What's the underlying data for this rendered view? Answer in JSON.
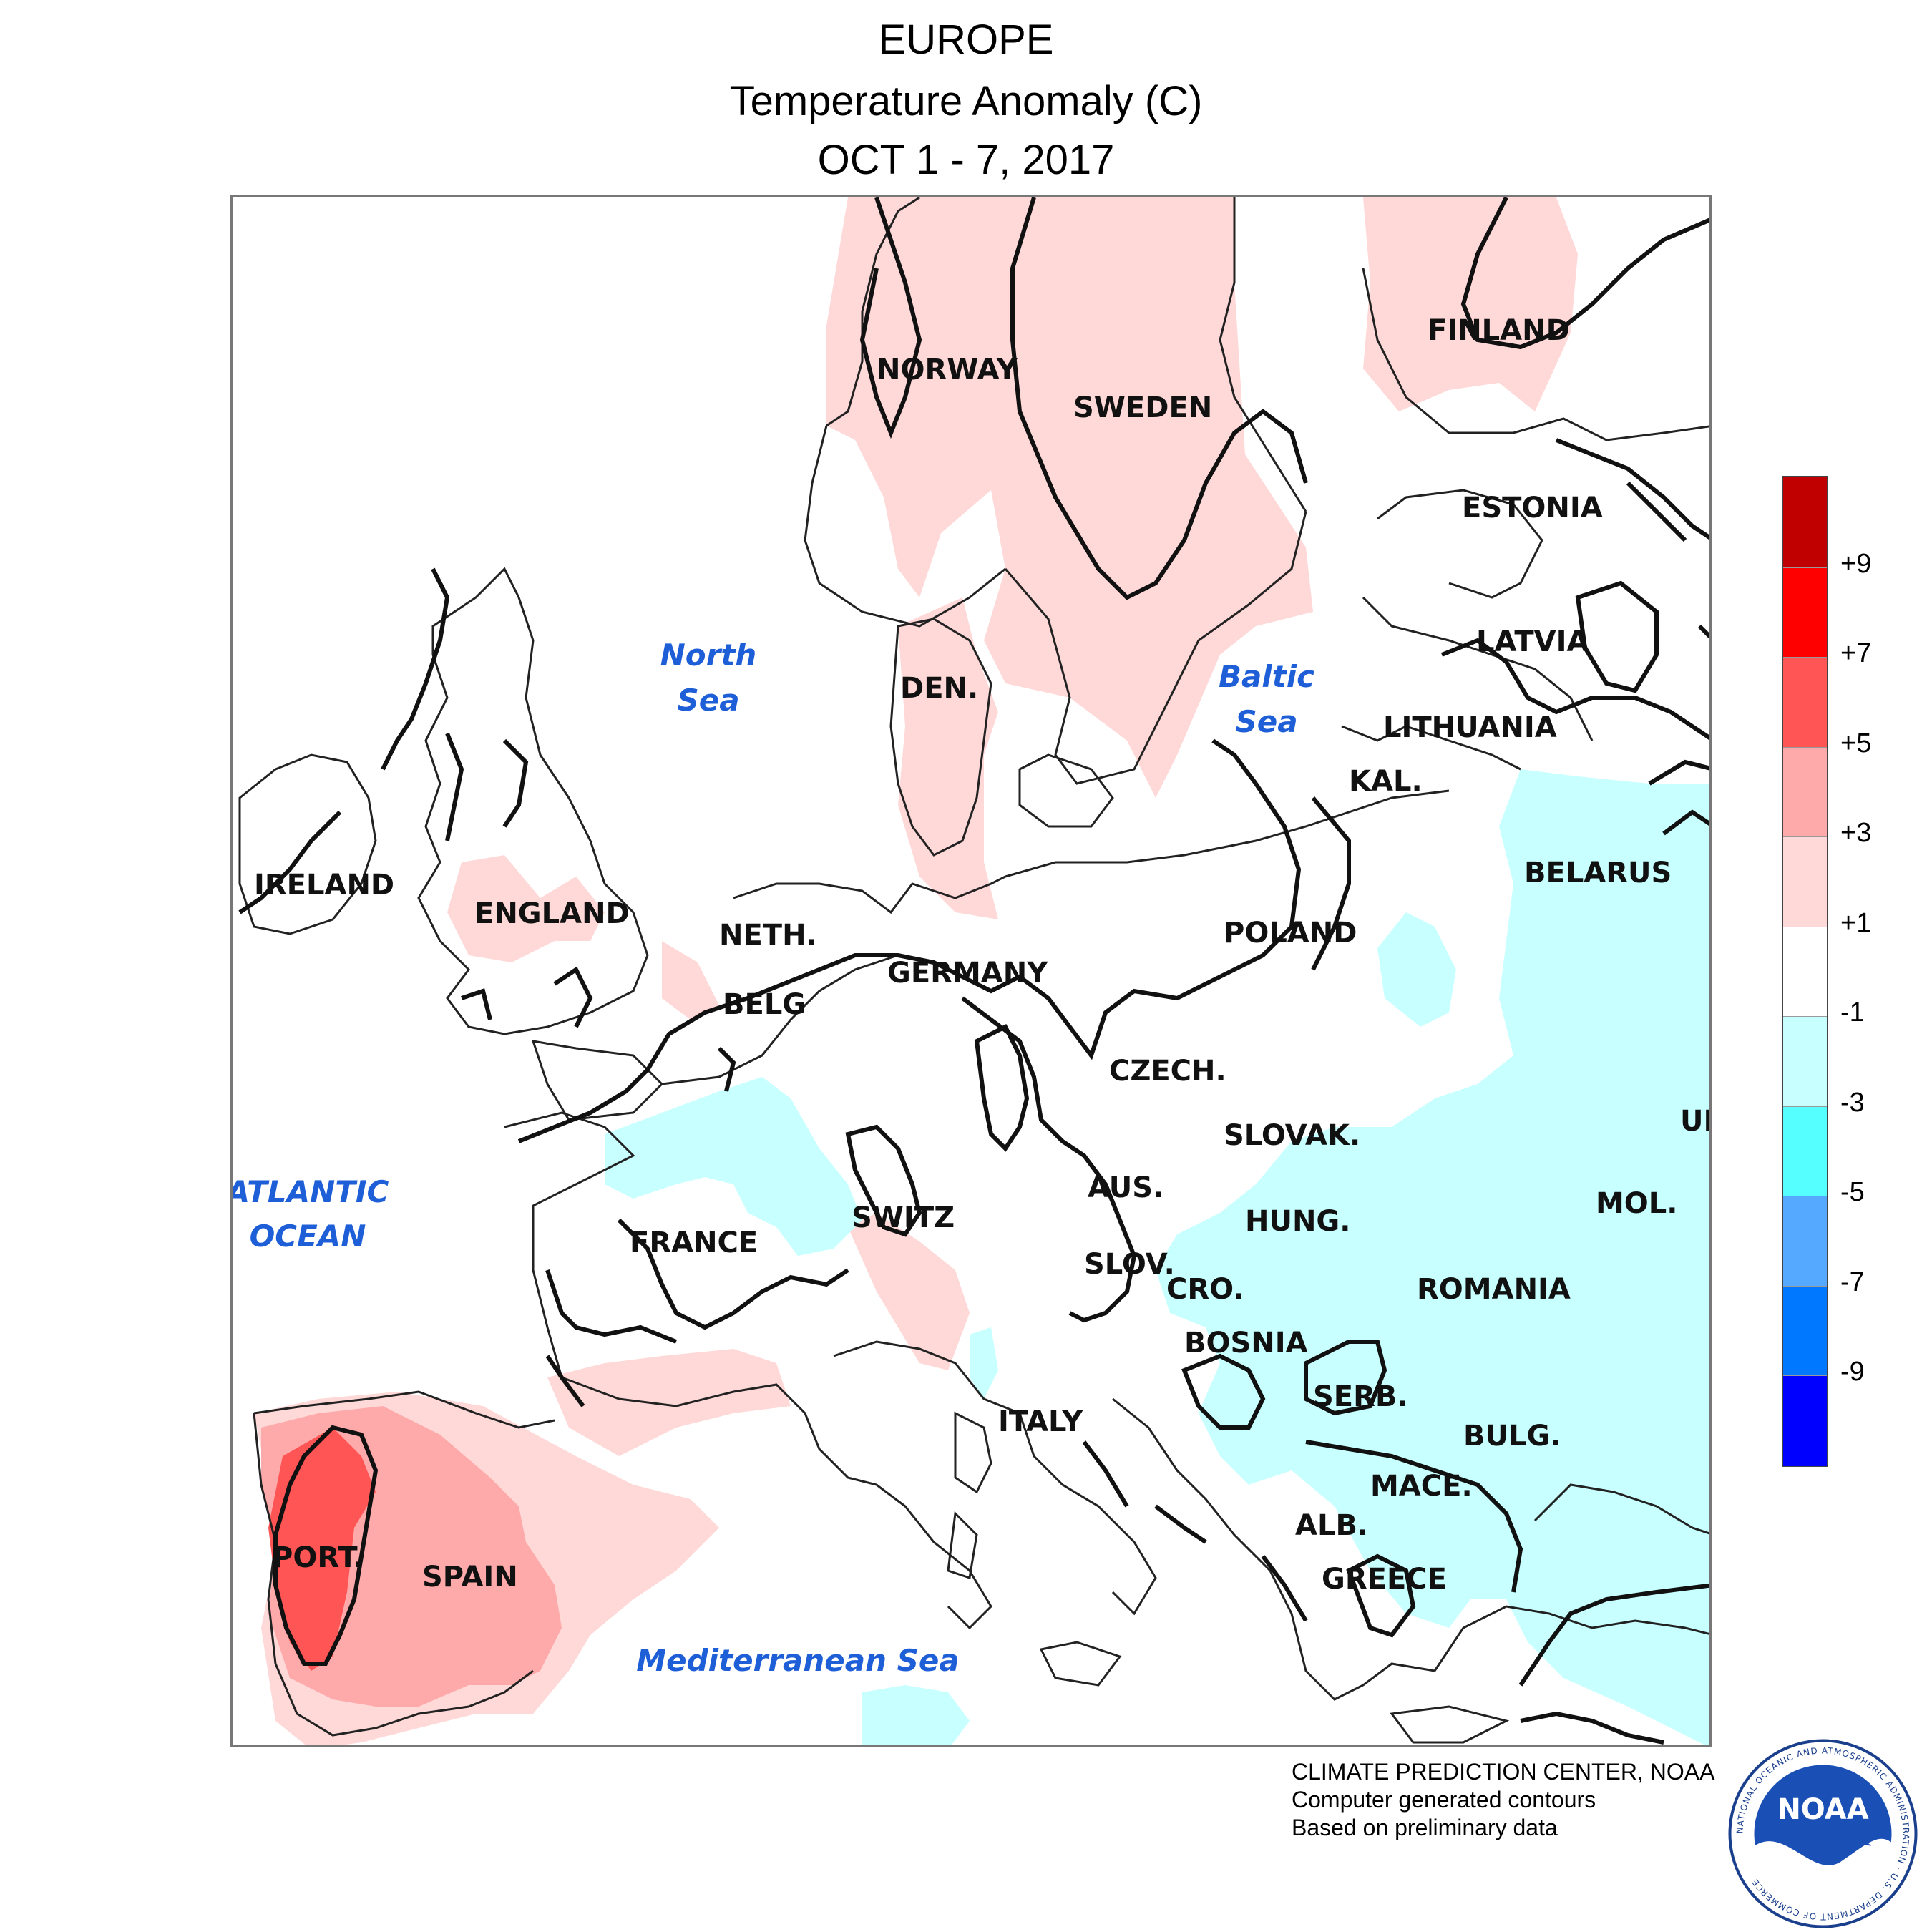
{
  "header": {
    "title": "EUROPE",
    "subtitle": "Temperature Anomaly (C)",
    "period": "OCT 1 - 7, 2017"
  },
  "map": {
    "countries": [
      "NORWAY",
      "SWEDEN",
      "FINLAND",
      "ESTONIA",
      "LATVIA",
      "LITHUANIA",
      "KAL.",
      "BELARUS",
      "POLAND",
      "DEN.",
      "IRELAND",
      "ENGLAND",
      "NETH.",
      "BELG",
      "GERMANY",
      "CZECH.",
      "SLOVAK.",
      "AUS.",
      "HUNG.",
      "SWITZ",
      "FRANCE",
      "SLOV.",
      "CRO.",
      "BOSNIA",
      "SERB.",
      "ROMANIA",
      "MOL.",
      "UK",
      "BULG.",
      "MACE.",
      "ALB.",
      "GREECE",
      "ITALY",
      "PORT.",
      "SPAIN"
    ],
    "water": [
      "North Sea",
      "Baltic Sea",
      "ATLANTIC OCEAN",
      "Mediterranean Sea"
    ],
    "water_lines": {
      "north_sea": [
        "North",
        "Sea"
      ],
      "baltic_sea": [
        "Baltic",
        "Sea"
      ],
      "atlantic": [
        "ATLANTIC",
        "OCEAN"
      ],
      "med": "Mediterranean Sea"
    }
  },
  "legend": {
    "labels": [
      "+9",
      "+7",
      "+5",
      "+3",
      "+1",
      "-1",
      "-3",
      "-5",
      "-7",
      "-9"
    ],
    "colors": [
      "#c00000",
      "#ff0000",
      "#ff5555",
      "#ffaaaa",
      "#ffd8d8",
      "#ffffff",
      "#c8ffff",
      "#55ffff",
      "#55aaff",
      "#0078ff",
      "#0000ff"
    ]
  },
  "credits": {
    "line1": "CLIMATE PREDICTION CENTER, NOAA",
    "line2": "Computer generated contours",
    "line3": "Based on preliminary data"
  },
  "logo": {
    "text": "NOAA",
    "ring_text": "NATIONAL OCEANIC AND ATMOSPHERIC ADMINISTRATION · U.S. DEPARTMENT OF COMMERCE"
  }
}
